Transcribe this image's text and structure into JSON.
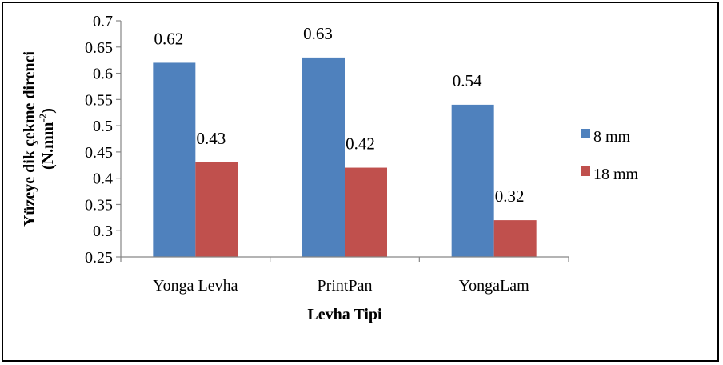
{
  "chart_data": {
    "type": "bar",
    "categories": [
      "Yonga Levha",
      "PrintPan",
      "YongaLam"
    ],
    "series": [
      {
        "name": "8 mm",
        "values": [
          0.62,
          0.63,
          0.54
        ],
        "color": "#4F81BD"
      },
      {
        "name": "18 mm",
        "values": [
          0.43,
          0.42,
          0.32
        ],
        "color": "#C0504D"
      }
    ],
    "data_labels": [
      [
        "0.62",
        "0.63",
        "0.54"
      ],
      [
        "0.43",
        "0.42",
        "0.32"
      ]
    ],
    "xlabel": "Levha Tipi",
    "ylabel_line1": "Yüzeye dik çekme direnci",
    "ylabel_line2_prefix": "(N.mm",
    "ylabel_line2_sup": "-2",
    "ylabel_line2_suffix": ")",
    "ylim": [
      0.25,
      0.7
    ],
    "y_ticks": [
      "0.25",
      "0.3",
      "0.35",
      "0.4",
      "0.45",
      "0.5",
      "0.55",
      "0.6",
      "0.65",
      "0.7"
    ],
    "grid": false,
    "legend_position": "right"
  }
}
